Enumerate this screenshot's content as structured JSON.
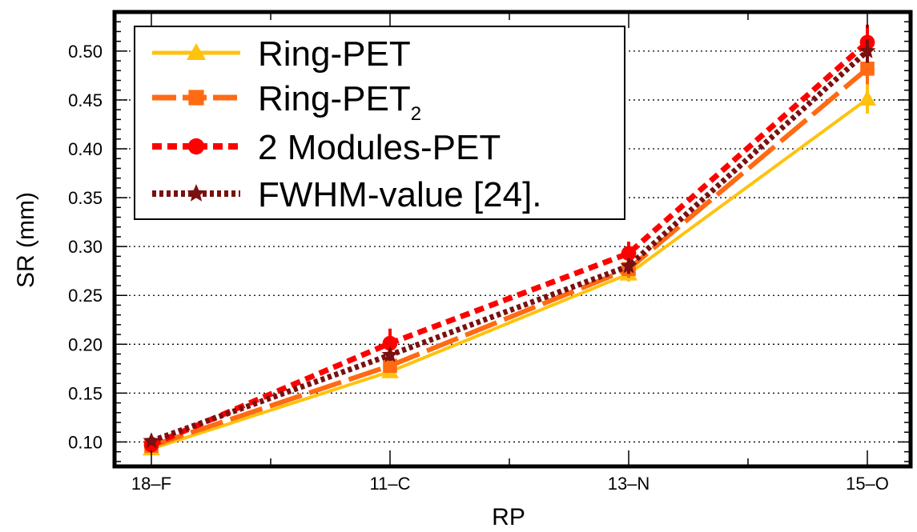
{
  "chart_data": {
    "type": "line",
    "categories": [
      "18–F",
      "11–C",
      "13–N",
      "15–O"
    ],
    "xlabel": "RP",
    "ylabel": "SR (mm)",
    "ylim": [
      0.075,
      0.54
    ],
    "yticks": [
      0.1,
      0.15,
      0.2,
      0.25,
      0.3,
      0.35,
      0.4,
      0.45,
      0.5
    ],
    "ytick_labels": [
      "0.10",
      "0.15",
      "0.20",
      "0.25",
      "0.30",
      "0.35",
      "0.40",
      "0.45",
      "0.50"
    ],
    "grid": "horizontal dotted",
    "legend_position": "top-left",
    "series": [
      {
        "name": "Ring-PET",
        "values": [
          0.093,
          0.172,
          0.272,
          0.451
        ],
        "errors": [
          0.004,
          0.006,
          0.008,
          0.015
        ],
        "color": "#ffc20e",
        "marker": "triangle",
        "dash": "solid"
      },
      {
        "name": "Ring-PET",
        "name_subscript": "2",
        "values": [
          0.096,
          0.178,
          0.277,
          0.482
        ],
        "errors": [
          0.004,
          0.007,
          0.009,
          0.016
        ],
        "color": "#ff6a13",
        "marker": "square",
        "dash": "long-dash"
      },
      {
        "name": "2 Modules-PET",
        "values": [
          0.097,
          0.201,
          0.293,
          0.509
        ],
        "errors": [
          0.004,
          0.015,
          0.012,
          0.018
        ],
        "color": "#ff0000",
        "marker": "circle",
        "dash": "short-dash"
      },
      {
        "name": "FWHM-value [24].",
        "values": [
          0.101,
          0.189,
          0.28,
          0.5
        ],
        "errors": [
          0.003,
          0.006,
          0.008,
          0.012
        ],
        "color": "#7a1010",
        "marker": "star",
        "dash": "dotted"
      }
    ]
  }
}
